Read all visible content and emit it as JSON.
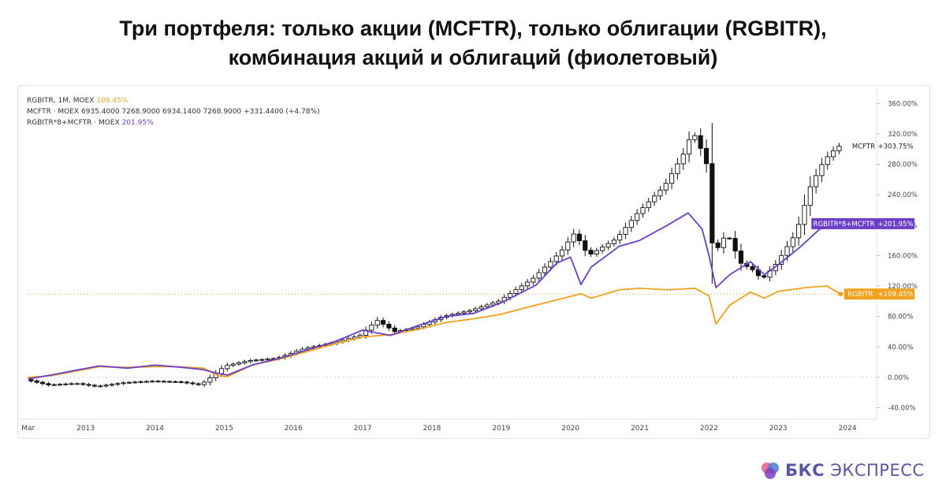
{
  "title": {
    "line1": "Три портфеля: только акции (MCFTR), только облигации (RGBITR),",
    "line2": "комбинация акций и облигаций (фиолетовый)"
  },
  "legend": {
    "row1_text": "RGBITR, 1M, MOEX",
    "row1_value": "109.45%",
    "row2_text": "MCFTR · MOEX  6935.4000  7268.9000  6934.1400  7268.9000  +331.4400 (+4.78%)",
    "row3_text": "RGBITR*8+MCFTR · MOEX",
    "row3_value": "201.95%"
  },
  "brand": {
    "bold": "БКС",
    "regular": " ЭКСПРЕСС",
    "colors": [
      "#e85a8c",
      "#4e7bd8",
      "#7f3fbf"
    ]
  },
  "chart_data": {
    "type": "line",
    "x_unit": "year",
    "xlim": [
      2012.15,
      2024.42
    ],
    "ylim": [
      -55,
      380
    ],
    "y_ticks": [
      -40,
      0,
      40,
      80,
      120,
      160,
      200,
      240,
      280,
      320,
      360
    ],
    "y_tick_labels": [
      "-40.00%",
      "0.00%",
      "40.00%",
      "80.00%",
      "120.00%",
      "160.00%",
      "200.00%",
      "240.00%",
      "280.00%",
      "320.00%",
      "360.00%"
    ],
    "x_ticks": [
      2012.17,
      2013,
      2014,
      2015,
      2016,
      2017,
      2018,
      2019,
      2020,
      2021,
      2022,
      2023,
      2024
    ],
    "x_tick_labels": [
      "Mar",
      "2013",
      "2014",
      "2015",
      "2016",
      "2017",
      "2018",
      "2019",
      "2020",
      "2021",
      "2022",
      "2023",
      "2024"
    ],
    "grid": false,
    "series": [
      {
        "name": "RGBITR",
        "color": "#f2a11d",
        "last_label": "+109.45%",
        "x": [
          2012.17,
          2012.5,
          2012.9,
          2013.2,
          2013.6,
          2014.0,
          2014.3,
          2014.7,
          2014.92,
          2015.05,
          2015.4,
          2015.8,
          2016.2,
          2016.6,
          2017.0,
          2017.4,
          2017.8,
          2018.2,
          2018.6,
          2019.0,
          2019.5,
          2019.9,
          2020.15,
          2020.3,
          2020.7,
          2021.0,
          2021.4,
          2021.8,
          2022.0,
          2022.1,
          2022.3,
          2022.6,
          2022.8,
          2023.0,
          2023.4,
          2023.7,
          2023.9
        ],
        "values": [
          0,
          2,
          9,
          14,
          13,
          14,
          14,
          12,
          2,
          1,
          16,
          24,
          34,
          44,
          53,
          56,
          63,
          72,
          77,
          83,
          95,
          104,
          110,
          104,
          115,
          117,
          115,
          117,
          107,
          70,
          95,
          112,
          104,
          113,
          118,
          120,
          109.45
        ]
      },
      {
        "name": "RGBITR*8+MCFTR",
        "color": "#6b3fc7",
        "last_label": "+201.95%",
        "x": [
          2012.17,
          2012.5,
          2012.9,
          2013.2,
          2013.6,
          2014.0,
          2014.4,
          2014.7,
          2014.92,
          2015.05,
          2015.4,
          2015.8,
          2016.2,
          2016.6,
          2017.0,
          2017.4,
          2017.8,
          2018.2,
          2018.6,
          2019.0,
          2019.5,
          2019.8,
          2020.0,
          2020.15,
          2020.3,
          2020.7,
          2021.0,
          2021.4,
          2021.7,
          2021.9,
          2022.0,
          2022.1,
          2022.3,
          2022.6,
          2022.8,
          2023.0,
          2023.3,
          2023.6,
          2023.9
        ],
        "values": [
          -2,
          3,
          10,
          15,
          12,
          16,
          13,
          10,
          5,
          3,
          16,
          25,
          36,
          47,
          62,
          55,
          68,
          80,
          84,
          98,
          121,
          150,
          158,
          122,
          145,
          172,
          180,
          200,
          216,
          195,
          160,
          118,
          135,
          152,
          135,
          148,
          170,
          195,
          201.95
        ]
      },
      {
        "name": "MCFTR",
        "color": "#111111",
        "last_label": "+303.75%",
        "x": [
          2012.17,
          2012.5,
          2012.9,
          2013.2,
          2013.6,
          2014.0,
          2014.4,
          2014.7,
          2014.92,
          2015.05,
          2015.4,
          2015.8,
          2016.2,
          2016.6,
          2017.0,
          2017.25,
          2017.5,
          2017.8,
          2018.2,
          2018.6,
          2019.0,
          2019.5,
          2019.9,
          2020.1,
          2020.3,
          2020.7,
          2021.0,
          2021.4,
          2021.7,
          2021.8,
          2022.0,
          2022.1,
          2022.3,
          2022.5,
          2022.7,
          2022.8,
          2023.0,
          2023.3,
          2023.5,
          2023.7,
          2023.9
        ],
        "values": [
          -3,
          -10,
          -8,
          -12,
          -7,
          -5,
          -6,
          -10,
          5,
          15,
          22,
          25,
          38,
          45,
          55,
          75,
          60,
          65,
          80,
          88,
          100,
          130,
          165,
          190,
          160,
          182,
          215,
          252,
          298,
          325,
          285,
          160,
          190,
          150,
          140,
          128,
          148,
          190,
          250,
          285,
          303.75
        ]
      }
    ]
  }
}
